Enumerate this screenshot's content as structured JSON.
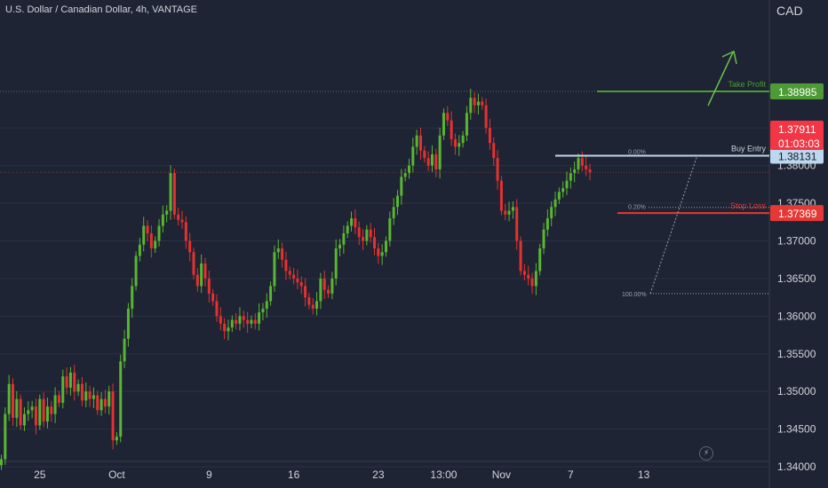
{
  "header": {
    "symbol": "U.S. Dollar / Canadian Dollar, 4h, VANTAGE",
    "currency": "CAD"
  },
  "colors": {
    "background": "#1e2433",
    "up": "#5ab532",
    "down": "#e5312f",
    "take_profit": "#4e9a36",
    "buy_entry": "#bdd7ee",
    "stop_loss": "#e53935",
    "text": "#d1d4dc",
    "grid": "#2b3143"
  },
  "icons": {
    "bolt": "lightning-bolt-icon"
  },
  "chart_data": {
    "type": "candlestick",
    "title": "U.S. Dollar / Canadian Dollar, 4h, VANTAGE",
    "y_axis_unit": "CAD",
    "ylim": [
      1.3393,
      1.3994
    ],
    "y_ticks": [
      "1.38500",
      "1.38000",
      "1.37500",
      "1.37000",
      "1.36500",
      "1.36000",
      "1.35500",
      "1.35000",
      "1.34500",
      "1.34000"
    ],
    "x_ticks": [
      {
        "label": "25",
        "bar": 10
      },
      {
        "label": "Oct",
        "bar": 30
      },
      {
        "label": "9",
        "bar": 54
      },
      {
        "label": "16",
        "bar": 76
      },
      {
        "label": "23",
        "bar": 98
      },
      {
        "label": "13:00",
        "bar": 115
      },
      {
        "label": "Nov",
        "bar": 130
      },
      {
        "label": "7",
        "bar": 148
      },
      {
        "label": "13",
        "bar": 167
      }
    ],
    "closes": [
      1.341,
      1.347,
      1.351,
      1.3465,
      1.349,
      1.3455,
      1.347,
      1.3475,
      1.348,
      1.3455,
      1.349,
      1.346,
      1.348,
      1.347,
      1.3495,
      1.3485,
      1.352,
      1.3505,
      1.3525,
      1.35,
      1.351,
      1.3488,
      1.35,
      1.349,
      1.3495,
      1.3475,
      1.349,
      1.348,
      1.35,
      1.3435,
      1.344,
      1.354,
      1.357,
      1.361,
      1.364,
      1.368,
      1.3695,
      1.372,
      1.371,
      1.369,
      1.37,
      1.372,
      1.3735,
      1.374,
      1.379,
      1.3735,
      1.3728,
      1.3725,
      1.37,
      1.3685,
      1.3655,
      1.364,
      1.367,
      1.365,
      1.363,
      1.362,
      1.36,
      1.359,
      1.358,
      1.3585,
      1.3595,
      1.359,
      1.36,
      1.3595,
      1.359,
      1.3595,
      1.359,
      1.3605,
      1.361,
      1.362,
      1.364,
      1.3685,
      1.369,
      1.3675,
      1.366,
      1.3655,
      1.365,
      1.3645,
      1.364,
      1.3625,
      1.3615,
      1.361,
      1.362,
      1.365,
      1.3635,
      1.363,
      1.365,
      1.369,
      1.3695,
      1.371,
      1.372,
      1.373,
      1.3718,
      1.3705,
      1.37,
      1.3715,
      1.3705,
      1.369,
      1.368,
      1.3685,
      1.37,
      1.373,
      1.3745,
      1.376,
      1.3785,
      1.379,
      1.38,
      1.3825,
      1.384,
      1.382,
      1.381,
      1.38,
      1.3815,
      1.3795,
      1.384,
      1.387,
      1.386,
      1.3835,
      1.3825,
      1.383,
      1.384,
      1.387,
      1.389,
      1.388,
      1.3885,
      1.388,
      1.385,
      1.383,
      1.381,
      1.378,
      1.374,
      1.3735,
      1.374,
      1.3745,
      1.37,
      1.366,
      1.3655,
      1.365,
      1.364,
      1.366,
      1.369,
      1.3715,
      1.373,
      1.3745,
      1.3755,
      1.3765,
      1.377,
      1.378,
      1.379,
      1.3795,
      1.381,
      1.38,
      1.3795,
      1.3791
    ],
    "annotations": {
      "take_profit": {
        "label": "Take Profit",
        "price": "1.38985"
      },
      "buy_entry": {
        "label": "Buy Entry",
        "price": "1.38131",
        "fib": "0.00%"
      },
      "stop_loss": {
        "label": "Stop Loss",
        "price": "1.37369",
        "fib": "0.20%"
      },
      "fib_low": {
        "label": "100.00%"
      },
      "current": {
        "price": "1.37911",
        "countdown": "01:03:03"
      }
    }
  }
}
